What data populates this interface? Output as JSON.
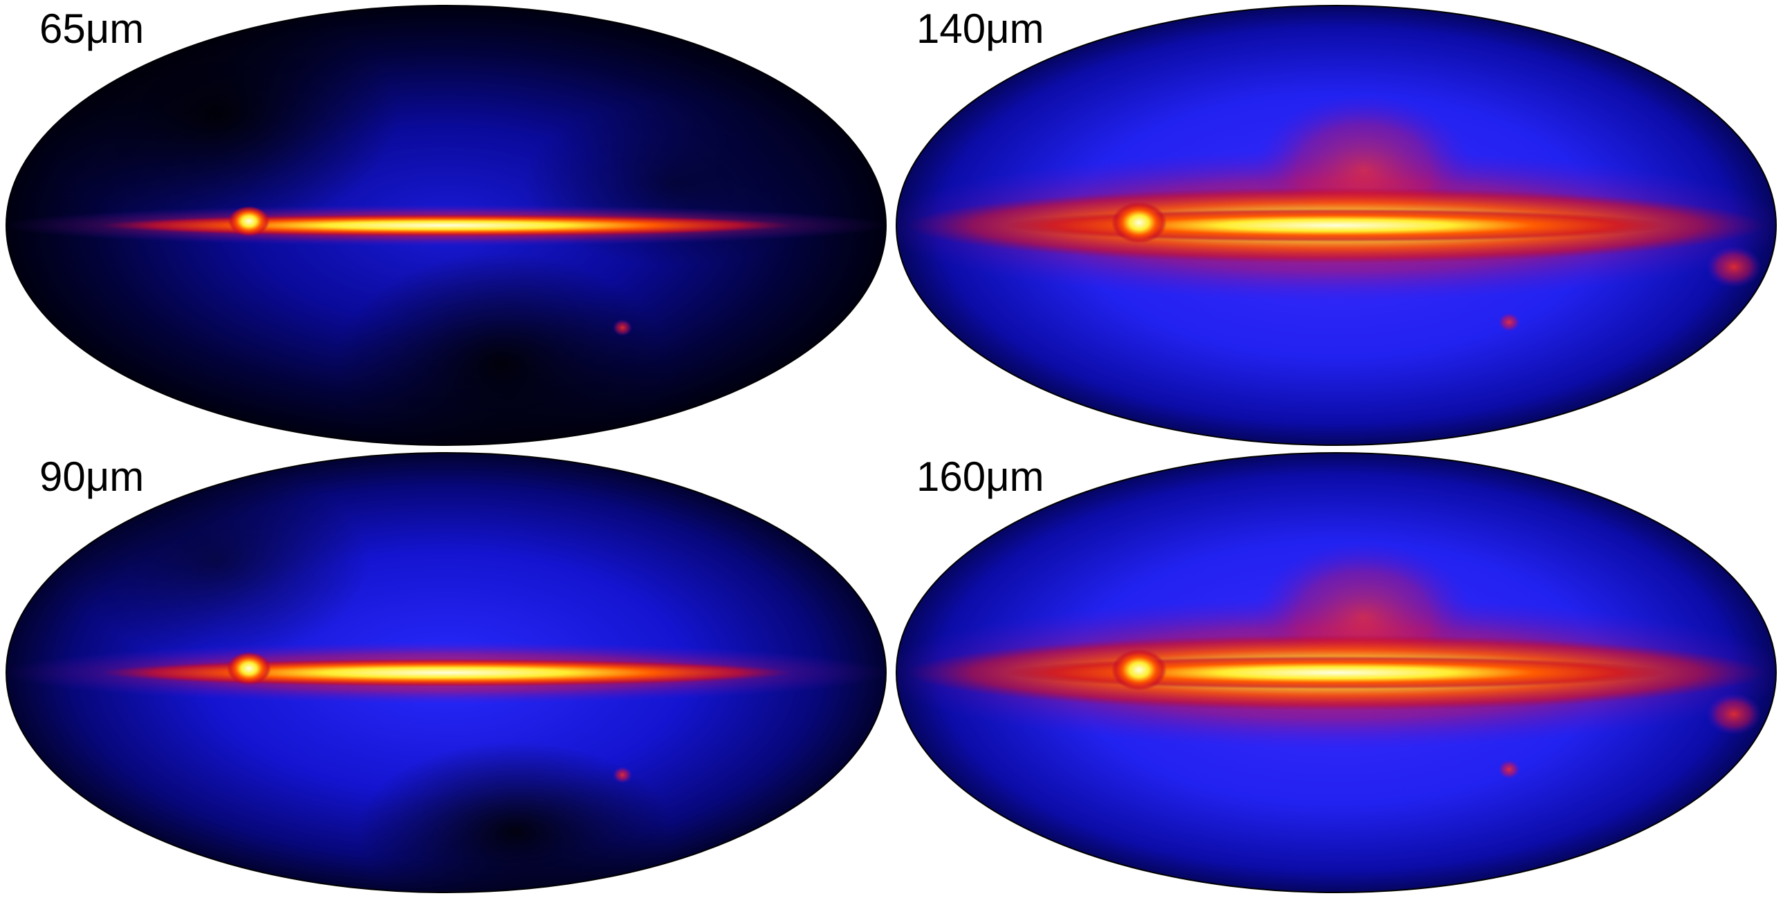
{
  "panels": [
    {
      "label": "65μm"
    },
    {
      "label": "140μm"
    },
    {
      "label": "90μm"
    },
    {
      "label": "160μm"
    }
  ]
}
